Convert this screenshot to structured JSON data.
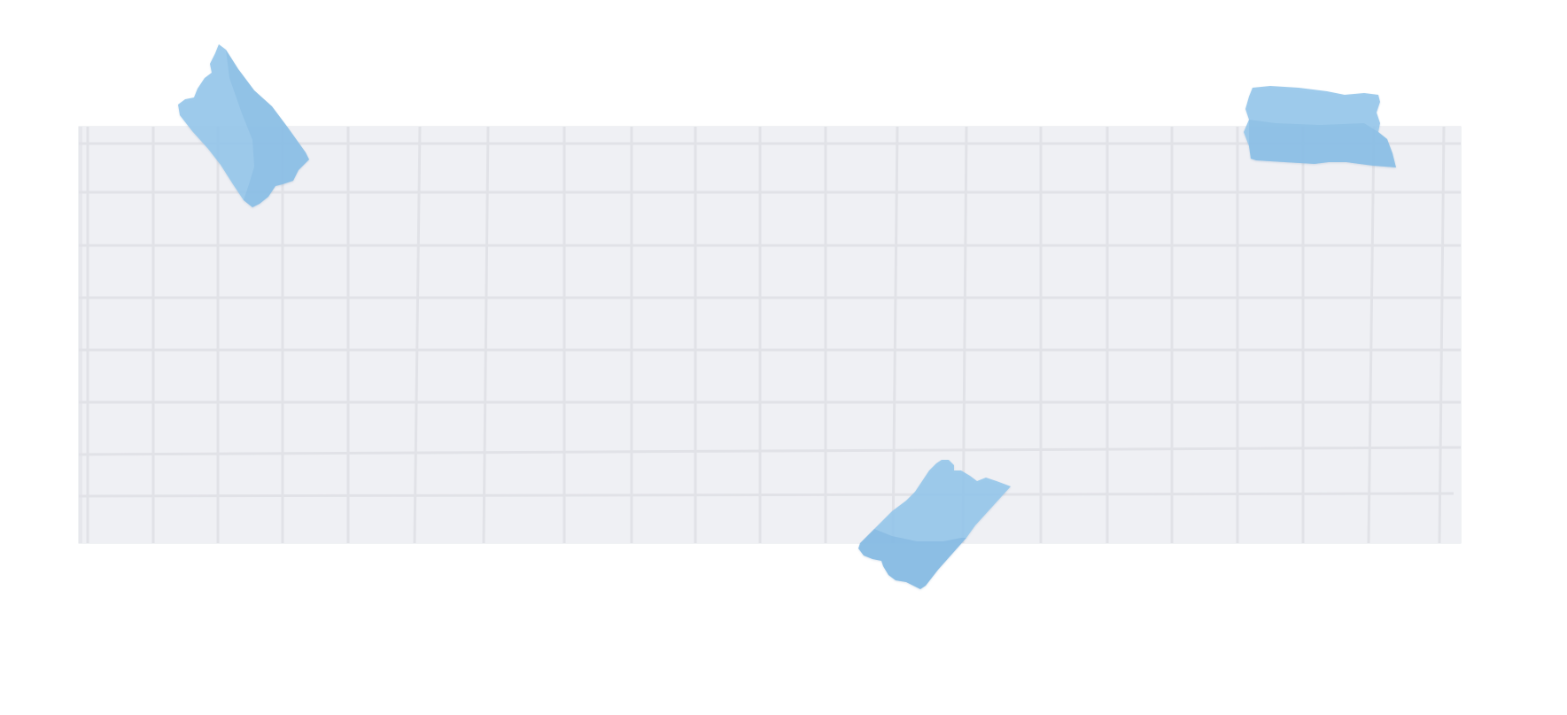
{
  "scene": {
    "description_label": "grid-paper-with-tape",
    "colors": {
      "background": "#ffffff",
      "paper": "#eff0f4",
      "grid_line": "#e1e2e7",
      "tape": "#94c6ea",
      "tape_shade": "#7fb5de"
    },
    "tape_pieces": [
      {
        "name": "tape-top-left",
        "icon": "tape-strip"
      },
      {
        "name": "tape-top-right",
        "icon": "tape-strip"
      },
      {
        "name": "tape-bottom-center",
        "icon": "tape-strip"
      }
    ]
  }
}
